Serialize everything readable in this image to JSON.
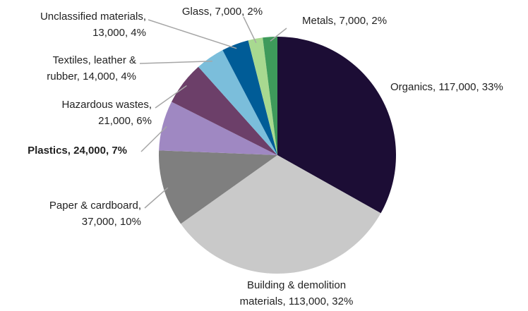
{
  "chart_data": {
    "type": "pie",
    "labels": [
      [
        "Organics, 117,000, 33%"
      ],
      [
        "Building & demolition",
        "materials, 113,000, 32%"
      ],
      [
        "Paper & cardboard,",
        "37,000, 10%"
      ],
      [
        "Plastics, 24,000, 7%"
      ],
      [
        "Hazardous wastes,",
        "21,000, 6%"
      ],
      [
        "Textiles, leather &",
        "rubber, 14,000, 4%"
      ],
      [
        "Unclassified materials,",
        "13,000, 4%"
      ],
      [
        "Glass, 7,000, 2%"
      ],
      [
        "Metals, 7,000, 2%"
      ]
    ],
    "values": [
      117000,
      113000,
      37000,
      24000,
      21000,
      14000,
      13000,
      7000,
      7000
    ],
    "colors": [
      "#1c0d35",
      "#c9c9c9",
      "#7f7f7f",
      "#9f88c2",
      "#6c3f69",
      "#7bbedb",
      "#005c97",
      "#a8d990",
      "#3e9a5b"
    ],
    "bold_labels": [
      3
    ]
  }
}
